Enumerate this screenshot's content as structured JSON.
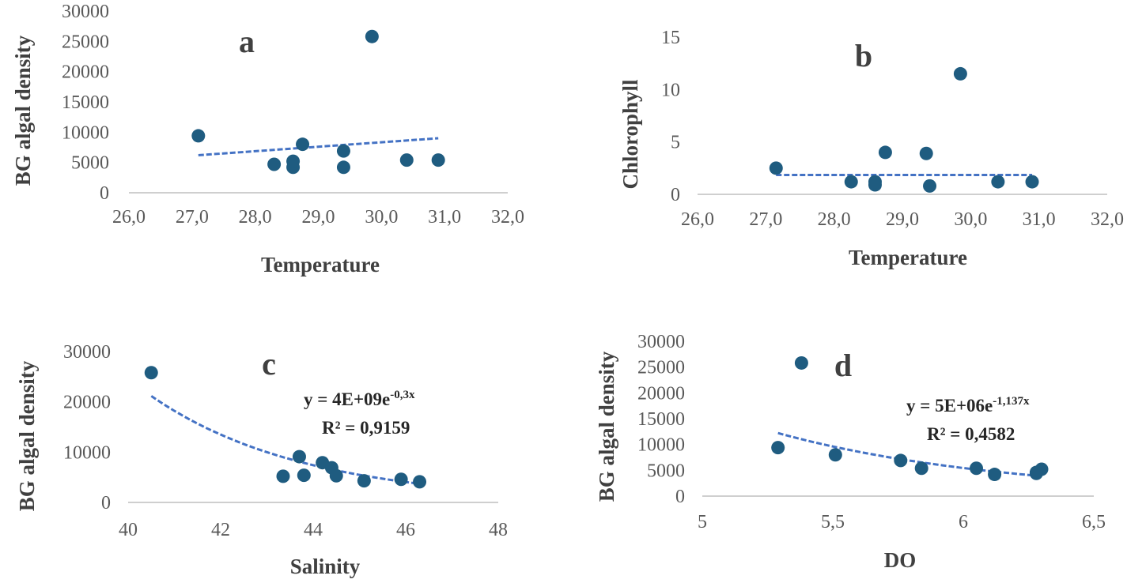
{
  "colors": {
    "marker": "#1f5c80",
    "trendline": "#4472c4",
    "axis": "#bfbfbf",
    "text": "#404040"
  },
  "chart_data": [
    {
      "panel": "a",
      "type": "scatter",
      "xlabel": "Temperature",
      "ylabel": "BG algal density",
      "xlim": [
        26,
        32
      ],
      "ylim": [
        0,
        30000
      ],
      "xticks": [
        26,
        27,
        28,
        29,
        30,
        31,
        32
      ],
      "xtick_labels": [
        "26,0",
        "27,0",
        "28,0",
        "29,0",
        "30,0",
        "31,0",
        "32,0"
      ],
      "yticks": [
        0,
        5000,
        10000,
        15000,
        20000,
        25000,
        30000
      ],
      "ytick_labels": [
        "0",
        "5000",
        "10000",
        "15000",
        "20000",
        "25000",
        "30000"
      ],
      "points": [
        {
          "x": 27.1,
          "y": 9400
        },
        {
          "x": 28.3,
          "y": 4700
        },
        {
          "x": 28.6,
          "y": 4200
        },
        {
          "x": 28.6,
          "y": 5200
        },
        {
          "x": 28.75,
          "y": 8000
        },
        {
          "x": 29.4,
          "y": 6900
        },
        {
          "x": 29.4,
          "y": 4200
        },
        {
          "x": 29.85,
          "y": 25800
        },
        {
          "x": 30.4,
          "y": 5400
        },
        {
          "x": 30.9,
          "y": 5400
        }
      ],
      "trendline": {
        "type": "linear",
        "x": [
          27.1,
          30.9
        ],
        "y": [
          6200,
          9000
        ]
      },
      "equation": "",
      "r2": ""
    },
    {
      "panel": "b",
      "type": "scatter",
      "xlabel": "Temperature",
      "ylabel": "Chlorophyll",
      "xlim": [
        26,
        32
      ],
      "ylim": [
        0,
        15
      ],
      "xticks": [
        26,
        27,
        28,
        29,
        30,
        31,
        32
      ],
      "xtick_labels": [
        "26,0",
        "27,0",
        "28,0",
        "29,0",
        "30,0",
        "31,0",
        "32,0"
      ],
      "yticks": [
        0,
        5,
        10,
        15
      ],
      "ytick_labels": [
        "0",
        "5",
        "10",
        "15"
      ],
      "points": [
        {
          "x": 27.15,
          "y": 2.5
        },
        {
          "x": 28.25,
          "y": 1.2
        },
        {
          "x": 28.6,
          "y": 0.9
        },
        {
          "x": 28.6,
          "y": 1.2
        },
        {
          "x": 28.75,
          "y": 4.0
        },
        {
          "x": 29.35,
          "y": 3.9
        },
        {
          "x": 29.4,
          "y": 0.8
        },
        {
          "x": 29.85,
          "y": 11.5
        },
        {
          "x": 30.4,
          "y": 1.2
        },
        {
          "x": 30.9,
          "y": 1.2
        }
      ],
      "trendline": {
        "type": "linear",
        "x": [
          27.15,
          30.9
        ],
        "y": [
          1.85,
          1.85
        ]
      },
      "equation": "",
      "r2": ""
    },
    {
      "panel": "c",
      "type": "scatter",
      "xlabel": "Salinity",
      "ylabel": "BG algal density",
      "xlim": [
        40,
        48
      ],
      "ylim": [
        0,
        30000
      ],
      "xticks": [
        40,
        42,
        44,
        46,
        48
      ],
      "xtick_labels": [
        "40",
        "42",
        "44",
        "46",
        "48"
      ],
      "yticks": [
        0,
        10000,
        20000,
        30000
      ],
      "ytick_labels": [
        "0",
        "10000",
        "20000",
        "30000"
      ],
      "points": [
        {
          "x": 40.5,
          "y": 25800
        },
        {
          "x": 43.35,
          "y": 5200
        },
        {
          "x": 43.7,
          "y": 9100
        },
        {
          "x": 43.8,
          "y": 5400
        },
        {
          "x": 44.2,
          "y": 7900
        },
        {
          "x": 44.4,
          "y": 6900
        },
        {
          "x": 44.5,
          "y": 5300
        },
        {
          "x": 45.1,
          "y": 4300
        },
        {
          "x": 45.9,
          "y": 4600
        },
        {
          "x": 46.3,
          "y": 4100
        }
      ],
      "trendline": {
        "type": "exponential",
        "a": 4000000000,
        "b": -0.3,
        "x_range": [
          40.5,
          46.3
        ]
      },
      "equation": "y = 4E+09e",
      "equation_exponent": "-0,3x",
      "r2": "R² = 0,9159"
    },
    {
      "panel": "d",
      "type": "scatter",
      "xlabel": "DO",
      "ylabel": "BG algal density",
      "xlim": [
        5,
        6.5
      ],
      "ylim": [
        0,
        30000
      ],
      "xticks": [
        5,
        5.5,
        6,
        6.5
      ],
      "xtick_labels": [
        "5",
        "5,5",
        "6",
        "6,5"
      ],
      "yticks": [
        0,
        5000,
        10000,
        15000,
        20000,
        25000,
        30000
      ],
      "ytick_labels": [
        "0",
        "5000",
        "10000",
        "15000",
        "20000",
        "25000",
        "30000"
      ],
      "points": [
        {
          "x": 5.29,
          "y": 9400
        },
        {
          "x": 5.38,
          "y": 25800
        },
        {
          "x": 5.51,
          "y": 8000
        },
        {
          "x": 5.76,
          "y": 6900
        },
        {
          "x": 5.84,
          "y": 5400
        },
        {
          "x": 6.05,
          "y": 5400
        },
        {
          "x": 6.12,
          "y": 4200
        },
        {
          "x": 6.28,
          "y": 4600
        },
        {
          "x": 6.3,
          "y": 5200
        },
        {
          "x": 6.28,
          "y": 4400
        }
      ],
      "trendline": {
        "type": "exponential",
        "a": 5000000,
        "b": -1.137,
        "x_range": [
          5.29,
          6.3
        ]
      },
      "equation": "y = 5E+06e",
      "equation_exponent": "-1,137x",
      "r2": "R² = 0,4582"
    }
  ]
}
